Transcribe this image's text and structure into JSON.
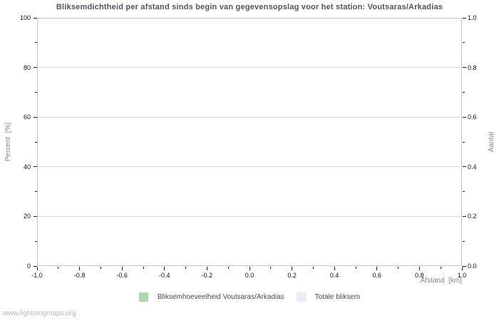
{
  "title": "Bliksemdichtheid per afstand sinds begin van gegevensopslag voor het station: Voutsaras/Arkadias",
  "watermark": "www.lightningmaps.org",
  "axes": {
    "y_left": {
      "label": "Percent  [%]",
      "ticks": [
        "0",
        "20",
        "40",
        "60",
        "80",
        "100"
      ],
      "min": 0,
      "max": 100
    },
    "y_right": {
      "label": "Aantal",
      "ticks": [
        "0.0",
        "0.2",
        "0.4",
        "0.6",
        "0.8",
        "1.0"
      ],
      "min": 0.0,
      "max": 1.0
    },
    "x": {
      "label": "Afstand  [km]",
      "ticks": [
        "-1.0",
        "-0.8",
        "-0.6",
        "-0.4",
        "-0.2",
        "0.0",
        "0.2",
        "0.4",
        "0.6",
        "0.8",
        "1.0"
      ],
      "min": -1.0,
      "max": 1.0
    }
  },
  "legend": [
    {
      "label": "Bliksemhoeveelheid Voutsaras/Arkadias",
      "color": "#abd9ab"
    },
    {
      "label": "Totale bliksem",
      "color": "#eaedf8"
    }
  ],
  "colors": {
    "grid": "#d8d8d8",
    "plot_border": "#c6c6c6",
    "tick": "#1c1c1c",
    "title_text": "#53535b",
    "axis_title_text": "#878787",
    "tick_label_text": "#111111",
    "legend_text": "#4a4a4a",
    "watermark_text": "#b8b8b8"
  },
  "chart_data": {
    "type": "bar",
    "title": "Bliksemdichtheid per afstand sinds begin van gegevensopslag voor het station: Voutsaras/Arkadias",
    "xlabel": "Afstand [km]",
    "ylabel_left": "Percent [%]",
    "ylabel_right": "Aantal",
    "xlim": [
      -1.0,
      1.0
    ],
    "ylim_left": [
      0,
      100
    ],
    "ylim_right": [
      0.0,
      1.0
    ],
    "x_major_ticks": [
      -1.0,
      -0.8,
      -0.6,
      -0.4,
      -0.2,
      0.0,
      0.2,
      0.4,
      0.6,
      0.8,
      1.0
    ],
    "y_left_major_ticks": [
      0,
      20,
      40,
      60,
      80,
      100
    ],
    "y_right_major_ticks": [
      0.0,
      0.2,
      0.4,
      0.6,
      0.8,
      1.0
    ],
    "grid": true,
    "legend_position": "bottom-center",
    "series": [
      {
        "name": "Bliksemhoeveelheid Voutsaras/Arkadias",
        "color": "#abd9ab",
        "x": [],
        "values": []
      },
      {
        "name": "Totale bliksem",
        "color": "#eaedf8",
        "x": [],
        "values": []
      }
    ]
  }
}
